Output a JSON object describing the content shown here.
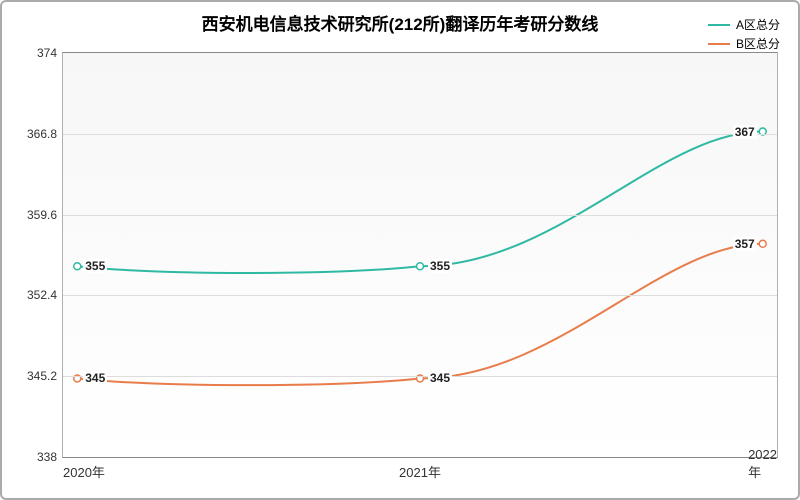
{
  "chart": {
    "type": "line",
    "title": "西安机电信息技术研究所(212所)翻译历年考研分数线",
    "title_fontsize": 17,
    "background": {
      "top_color": "#f7f7f7",
      "bottom_color": "#ffffff"
    },
    "border_color": "#aaaaaa",
    "grid_color": "#dddddd",
    "plot_border_color": "#b0b0b0",
    "x": {
      "categories": [
        "2020年",
        "2021年",
        "2022年"
      ],
      "positions_pct": [
        2,
        50,
        98
      ]
    },
    "y": {
      "min": 338,
      "max": 374,
      "ticks": [
        338,
        345.2,
        352.4,
        359.6,
        366.8,
        374
      ],
      "tick_labels": [
        "338",
        "345.2",
        "352.4",
        "359.6",
        "366.8",
        "374"
      ],
      "tick_fontsize": 12
    },
    "series": [
      {
        "name": "A区总分",
        "color": "#2fb9a3",
        "line_width": 2,
        "values": [
          355,
          355,
          367
        ],
        "mid_dip": 354.2,
        "labels": [
          "355",
          "355",
          "367"
        ]
      },
      {
        "name": "B区总分",
        "color": "#e87c4a",
        "line_width": 2,
        "values": [
          345,
          345,
          357
        ],
        "mid_dip": 344.2,
        "labels": [
          "345",
          "345",
          "357"
        ]
      }
    ],
    "legend": {
      "fontsize": 12,
      "position": "top-right"
    }
  }
}
